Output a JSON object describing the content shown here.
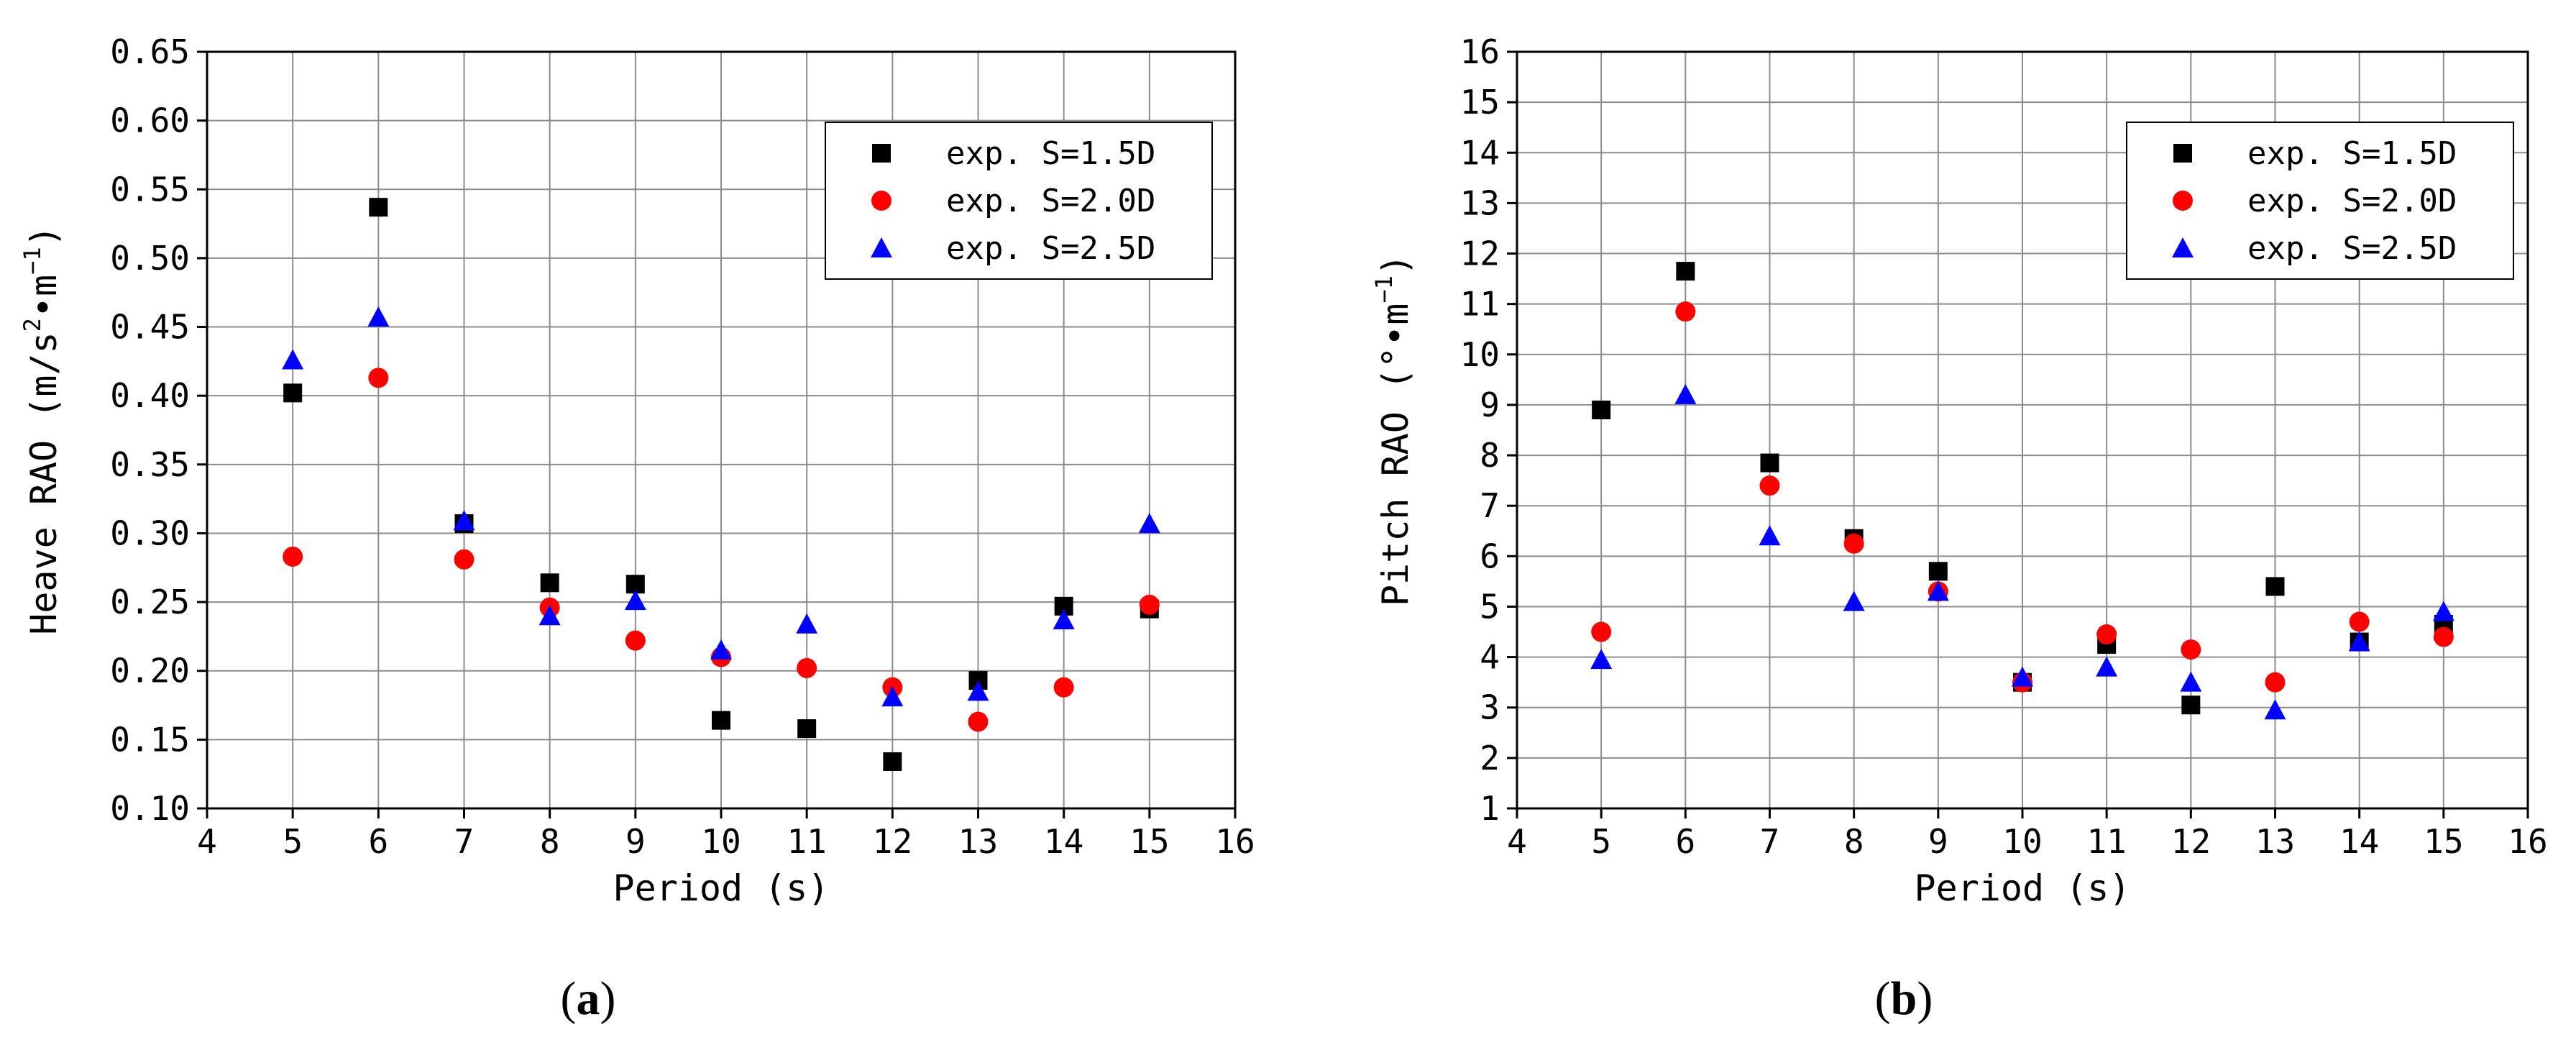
{
  "chart_data": [
    {
      "id": "a",
      "type": "scatter",
      "caption": "a",
      "xlabel": "Period (s)",
      "ylabel_main": "Heave RAO (m/s",
      "ylabel_sup1": "2",
      "ylabel_mid": "•m",
      "ylabel_sup2": "−1",
      "ylabel_end": ")",
      "xlim": [
        4,
        16
      ],
      "ylim": [
        0.1,
        0.65
      ],
      "xticks": [
        "4",
        "5",
        "6",
        "7",
        "8",
        "9",
        "10",
        "11",
        "12",
        "13",
        "14",
        "15",
        "16"
      ],
      "yticks": [
        "0.10",
        "0.15",
        "0.20",
        "0.25",
        "0.30",
        "0.35",
        "0.40",
        "0.45",
        "0.50",
        "0.55",
        "0.60",
        "0.65"
      ],
      "grid": true,
      "legend_position": "top-right",
      "x": [
        5,
        6,
        7,
        8,
        9,
        10,
        11,
        12,
        13,
        14,
        15
      ],
      "series": [
        {
          "name": "exp.  S=1.5D",
          "marker": "square",
          "color": "#000000",
          "values": [
            0.402,
            0.537,
            0.307,
            0.264,
            0.263,
            0.164,
            0.158,
            0.134,
            0.193,
            0.247,
            0.245
          ]
        },
        {
          "name": "exp.  S=2.0D",
          "marker": "circle",
          "color": "#ff0000",
          "values": [
            0.283,
            0.413,
            0.281,
            0.246,
            0.222,
            0.21,
            0.202,
            0.188,
            0.163,
            0.188,
            0.248
          ]
        },
        {
          "name": "exp.  S=2.5D",
          "marker": "triangle",
          "color": "#0000ff",
          "values": [
            0.426,
            0.457,
            0.309,
            0.24,
            0.251,
            0.215,
            0.234,
            0.181,
            0.185,
            0.237,
            0.307
          ]
        }
      ]
    },
    {
      "id": "b",
      "type": "scatter",
      "caption": "b",
      "xlabel": "Period (s)",
      "ylabel_main": "Pitch RAO (°•m",
      "ylabel_sup1": "",
      "ylabel_mid": "",
      "ylabel_sup2": "−1",
      "ylabel_end": ")",
      "xlim": [
        4,
        16
      ],
      "ylim": [
        1,
        16
      ],
      "xticks": [
        "4",
        "5",
        "6",
        "7",
        "8",
        "9",
        "10",
        "11",
        "12",
        "13",
        "14",
        "15",
        "16"
      ],
      "yticks": [
        "1",
        "2",
        "3",
        "4",
        "5",
        "6",
        "7",
        "8",
        "9",
        "10",
        "11",
        "12",
        "13",
        "14",
        "15",
        "16"
      ],
      "grid": true,
      "legend_position": "top-right",
      "x": [
        5,
        6,
        7,
        8,
        9,
        10,
        11,
        12,
        13,
        14,
        15
      ],
      "series": [
        {
          "name": "exp.  S=1.5D",
          "marker": "square",
          "color": "#000000",
          "values": [
            8.9,
            11.65,
            7.85,
            6.35,
            5.7,
            3.5,
            4.25,
            3.05,
            5.4,
            4.3,
            4.65
          ]
        },
        {
          "name": "exp.  S=2.0D",
          "marker": "circle",
          "color": "#ff0000",
          "values": [
            4.5,
            10.85,
            7.4,
            6.25,
            5.3,
            3.5,
            4.45,
            4.15,
            3.5,
            4.7,
            4.4
          ]
        },
        {
          "name": "exp.  S=2.5D",
          "marker": "triangle",
          "color": "#0000ff",
          "values": [
            3.95,
            9.2,
            6.4,
            5.1,
            5.3,
            3.6,
            3.8,
            3.5,
            2.95,
            4.3,
            4.9
          ]
        }
      ]
    }
  ]
}
